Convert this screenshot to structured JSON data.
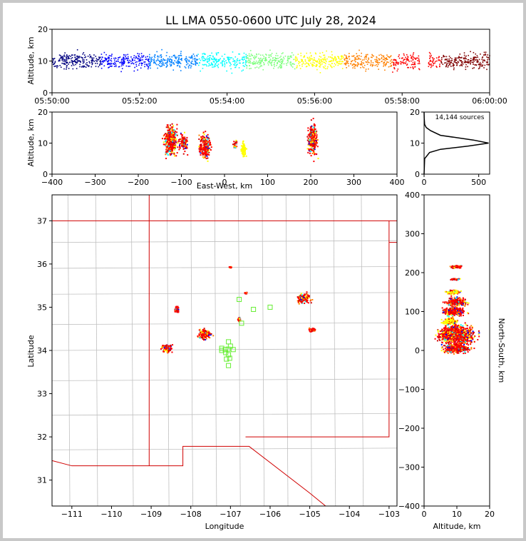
{
  "title": "LL LMA 0550-0600 UTC July 28, 2024",
  "chart_data": [
    {
      "type": "scatter",
      "panel": "altitude-time",
      "ylabel": "Altitude, km",
      "ylim": [
        0,
        20
      ],
      "yticks": [
        "0",
        "10",
        "20"
      ],
      "xticks": [
        "05:50:00",
        "05:52:00",
        "05:54:00",
        "05:56:00",
        "05:58:00",
        "06:00:00"
      ],
      "xlim_minutes": [
        0,
        10
      ],
      "color_encoding": "time",
      "colors": [
        "#000080",
        "#0000ff",
        "#0080ff",
        "#00ffff",
        "#80ff80",
        "#ffff00",
        "#ff8000",
        "#ff0000",
        "#800000"
      ],
      "clusters": [
        {
          "t_min": 0.1,
          "t_max": 10.0,
          "alt_center": 10,
          "alt_spread": 2.5
        }
      ]
    },
    {
      "type": "scatter",
      "panel": "altitude-eastwest",
      "xlabel": "East-West, km",
      "ylabel": "Altitude, km",
      "xlim": [
        -400,
        400
      ],
      "ylim": [
        0,
        20
      ],
      "xticks": [
        "−400",
        "−300",
        "−200",
        "−100",
        "0",
        "100",
        "200",
        "300",
        "400"
      ],
      "yticks": [
        "0",
        "10",
        "20"
      ],
      "clusters": [
        {
          "x": -125,
          "alt": 11,
          "dx": 14,
          "dalt": 4.5
        },
        {
          "x": -95,
          "alt": 10,
          "dx": 8,
          "dalt": 2.5
        },
        {
          "x": -45,
          "alt": 9,
          "dx": 12,
          "dalt": 3.5
        },
        {
          "x": 25,
          "alt": 9.5,
          "dx": 4,
          "dalt": 1.5
        },
        {
          "x": 45,
          "alt": 8,
          "dx": 5,
          "dalt": 2.5
        },
        {
          "x": 205,
          "alt": 11,
          "dx": 10,
          "dalt": 4.5
        }
      ]
    },
    {
      "type": "line",
      "panel": "altitude-histogram",
      "annotation": "14,144 sources",
      "xlim": [
        0,
        600
      ],
      "ylim": [
        0,
        20
      ],
      "xticks": [
        "0",
        "500"
      ],
      "yticks": [
        "0",
        "10",
        "20"
      ],
      "profile": [
        [
          0,
          0
        ],
        [
          5,
          5
        ],
        [
          50,
          7
        ],
        [
          150,
          8
        ],
        [
          400,
          9
        ],
        [
          590,
          10
        ],
        [
          450,
          11
        ],
        [
          150,
          12.5
        ],
        [
          60,
          14
        ],
        [
          20,
          15
        ],
        [
          5,
          16
        ],
        [
          1,
          18
        ],
        [
          0,
          20
        ]
      ]
    },
    {
      "type": "scatter",
      "panel": "plan-view-map",
      "xlabel": "Longitude",
      "ylabel": "Latitude",
      "xlim": [
        -111.5,
        -102.8
      ],
      "ylim": [
        30.4,
        37.6
      ],
      "xticks": [
        "−111",
        "−110",
        "−109",
        "−108",
        "−107",
        "−106",
        "−105",
        "−104",
        "−103"
      ],
      "yticks": [
        "31",
        "32",
        "33",
        "34",
        "35",
        "36",
        "37"
      ],
      "clusters": [
        {
          "lon": -108.6,
          "lat": 34.05,
          "dlon": 0.12,
          "dlat": 0.1
        },
        {
          "lon": -108.35,
          "lat": 34.95,
          "dlon": 0.06,
          "dlat": 0.08
        },
        {
          "lon": -107.65,
          "lat": 34.38,
          "dlon": 0.15,
          "dlat": 0.1
        },
        {
          "lon": -106.78,
          "lat": 34.72,
          "dlon": 0.04,
          "dlat": 0.04
        },
        {
          "lon": -106.62,
          "lat": 35.33,
          "dlon": 0.03,
          "dlat": 0.02
        },
        {
          "lon": -105.15,
          "lat": 35.2,
          "dlon": 0.15,
          "dlat": 0.1
        },
        {
          "lon": -104.92,
          "lat": 34.47,
          "dlon": 0.08,
          "dlat": 0.04
        },
        {
          "lon": -107.0,
          "lat": 35.93,
          "dlon": 0.03,
          "dlat": 0.02
        }
      ],
      "stations": [
        [
          -107.22,
          34.0
        ],
        [
          -107.13,
          34.02
        ],
        [
          -107.06,
          34.03
        ],
        [
          -107.0,
          34.1
        ],
        [
          -106.93,
          34.02
        ],
        [
          -107.05,
          33.9
        ],
        [
          -107.1,
          33.8
        ],
        [
          -107.02,
          33.82
        ],
        [
          -107.05,
          33.65
        ],
        [
          -106.72,
          34.63
        ],
        [
          -106.78,
          35.18
        ],
        [
          -106.42,
          34.95
        ],
        [
          -106.0,
          35.0
        ],
        [
          -107.05,
          34.2
        ],
        [
          -107.22,
          34.05
        ],
        [
          -107.12,
          33.95
        ]
      ]
    },
    {
      "type": "scatter",
      "panel": "northsouth-altitude",
      "xlabel": "Altitude, km",
      "ylabel": "North-South, km",
      "xlim": [
        0,
        20
      ],
      "ylim": [
        -400,
        400
      ],
      "xticks": [
        "0",
        "10",
        "20"
      ],
      "yticks": [
        "−400",
        "−300",
        "−200",
        "−100",
        "0",
        "100",
        "200",
        "300",
        "400"
      ],
      "clusters": [
        {
          "ns": 215,
          "alt": 10,
          "dns": 3,
          "dalt": 1.5
        },
        {
          "ns": 183,
          "alt": 9.5,
          "dns": 2,
          "dalt": 1.5
        },
        {
          "ns": 150,
          "alt": 9,
          "dns": 5,
          "dalt": 2
        },
        {
          "ns": 125,
          "alt": 10,
          "dns": 10,
          "dalt": 3
        },
        {
          "ns": 100,
          "alt": 9,
          "dns": 10,
          "dalt": 3
        },
        {
          "ns": 75,
          "alt": 8,
          "dns": 8,
          "dalt": 2
        },
        {
          "ns": 40,
          "alt": 10,
          "dns": 22,
          "dalt": 5
        },
        {
          "ns": 5,
          "alt": 10,
          "dns": 10,
          "dalt": 4
        }
      ]
    }
  ]
}
